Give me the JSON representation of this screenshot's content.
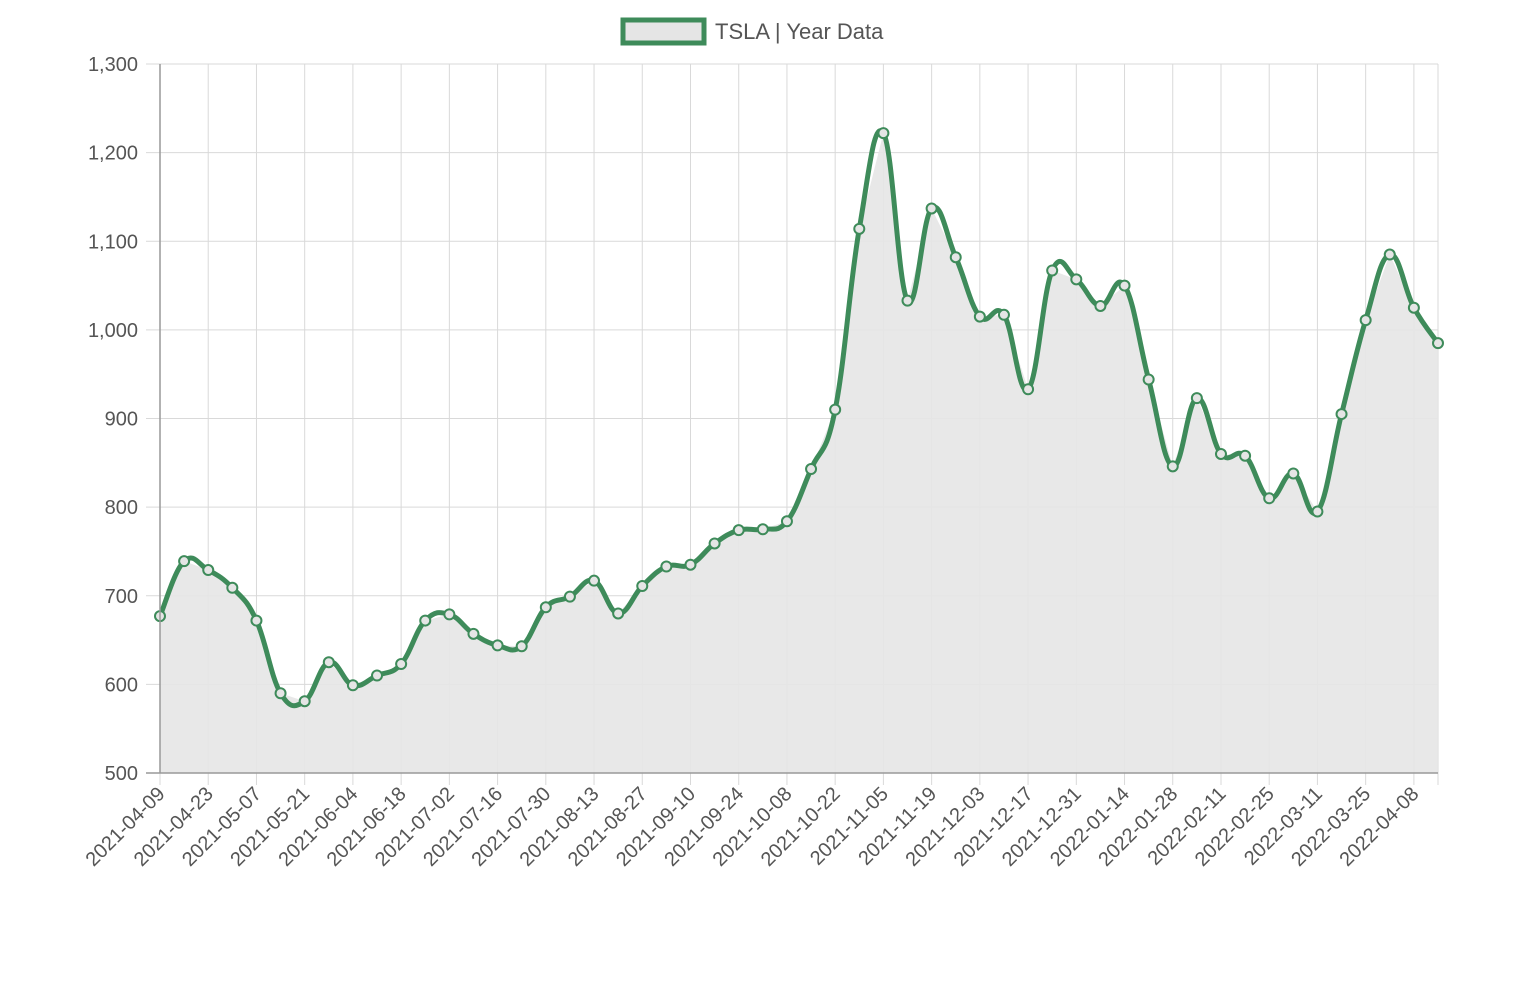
{
  "colors": {
    "line": "#3e8b5a",
    "fill": "#e5e5e5",
    "legend_box_fill": "#e5e5e5",
    "grid": "#d9d9d9",
    "axis": "#999999",
    "text": "#555555"
  },
  "chart_data": {
    "type": "line",
    "title": "",
    "xlabel": "",
    "ylabel": "",
    "legend": {
      "position": "top-center"
    },
    "grid": true,
    "ylim": [
      500,
      1300
    ],
    "y_ticks": [
      "1,300",
      "1,200",
      "1,100",
      "1,000",
      "900",
      "800",
      "700",
      "600",
      "500"
    ],
    "y_tick_values": [
      1300,
      1200,
      1100,
      1000,
      900,
      800,
      700,
      600,
      500
    ],
    "x_tick_labels": [
      "2021-04-09",
      "2021-04-23",
      "2021-05-07",
      "2021-05-21",
      "2021-06-04",
      "2021-06-18",
      "2021-07-02",
      "2021-07-16",
      "2021-07-30",
      "2021-08-13",
      "2021-08-27",
      "2021-09-10",
      "2021-09-24",
      "2021-10-08",
      "2021-10-22",
      "2021-11-05",
      "2021-11-19",
      "2021-12-03",
      "2021-12-17",
      "2021-12-31",
      "2022-01-14",
      "2022-01-28",
      "2022-02-11",
      "2022-02-25",
      "2022-03-11",
      "2022-03-25",
      "2022-04-08"
    ],
    "series": [
      {
        "name": "TSLA | Year Data",
        "values": [
          677,
          739,
          729,
          709,
          672,
          590,
          581,
          625,
          599,
          610,
          623,
          672,
          679,
          657,
          644,
          643,
          687,
          699,
          717,
          680,
          711,
          733,
          735,
          759,
          774,
          775,
          784,
          843,
          910,
          1114,
          1222,
          1033,
          1137,
          1082,
          1015,
          1017,
          933,
          1067,
          1057,
          1027,
          1050,
          944,
          846,
          923,
          860,
          858,
          810,
          838,
          795,
          905,
          1011,
          1085,
          1025,
          985
        ]
      }
    ]
  }
}
